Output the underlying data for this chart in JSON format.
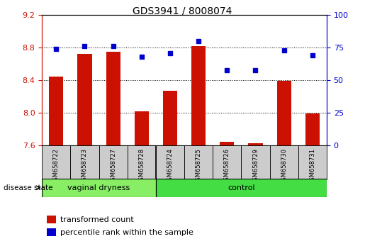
{
  "title": "GDS3941 / 8008074",
  "samples": [
    "GSM658722",
    "GSM658723",
    "GSM658727",
    "GSM658728",
    "GSM658724",
    "GSM658725",
    "GSM658726",
    "GSM658729",
    "GSM658730",
    "GSM658731"
  ],
  "bar_values": [
    8.45,
    8.72,
    8.75,
    8.02,
    8.27,
    8.82,
    7.65,
    7.63,
    8.39,
    7.99
  ],
  "percentile_values": [
    74,
    76,
    76,
    68,
    71,
    80,
    58,
    58,
    73,
    69
  ],
  "bar_color": "#cc1100",
  "dot_color": "#0000cc",
  "ylim_left": [
    7.6,
    9.2
  ],
  "ylim_right": [
    0,
    100
  ],
  "yticks_left": [
    7.6,
    8.0,
    8.4,
    8.8,
    9.2
  ],
  "yticks_right": [
    0,
    25,
    50,
    75,
    100
  ],
  "group1_label": "vaginal dryness",
  "group2_label": "control",
  "group1_count": 4,
  "group2_count": 6,
  "disease_state_label": "disease state",
  "legend1": "transformed count",
  "legend2": "percentile rank within the sample",
  "bar_width": 0.5,
  "baseline": 7.6,
  "group1_color": "#88ee66",
  "group2_color": "#44dd44",
  "left_axis_color": "#cc1100",
  "right_axis_color": "#0000cc",
  "title_fontsize": 10,
  "tick_fontsize": 8,
  "sample_fontsize": 6,
  "legend_fontsize": 8,
  "group_fontsize": 8
}
